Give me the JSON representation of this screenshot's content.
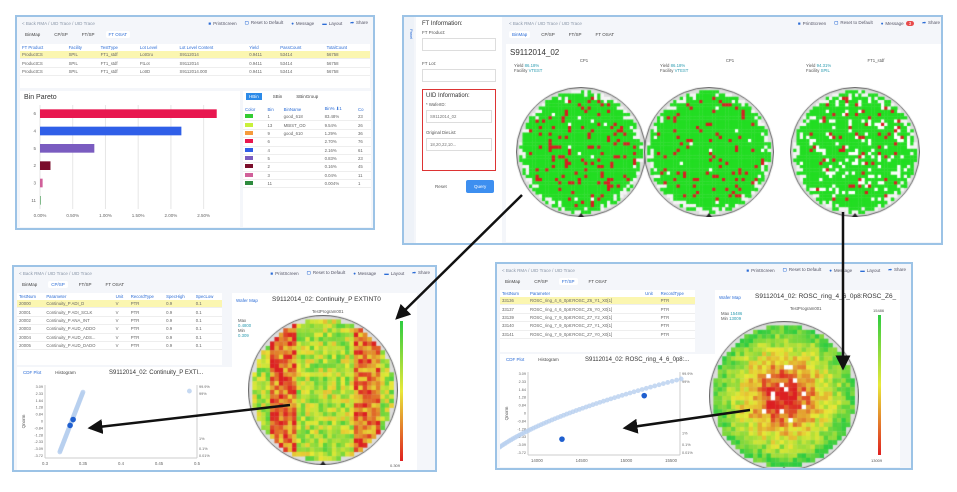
{
  "common": {
    "back": "< Back",
    "crumb": "RMA / UID Trace / UID Trace",
    "print": "PrintScreen",
    "reset": "Reset to Default",
    "message": "Message",
    "layout": "Layout",
    "share": "Share",
    "tabs": [
      "BinMap",
      "CP/SP",
      "FT/SP",
      "FT OSAT"
    ]
  },
  "panel_a": {
    "active_tab": 3,
    "table": {
      "headers": [
        "FT Product",
        "Facility",
        "TestType",
        "Lot Level",
        "Lot Level Content",
        "Yield",
        "PassCount",
        "TotalCount"
      ],
      "rows": [
        [
          "ProductCS",
          "SPIL",
          "FT1_stdf",
          "LotGru",
          "S9112014",
          "0.9411",
          "53414",
          "56758"
        ],
        [
          "ProductCS",
          "SPIL",
          "FT1_stdf",
          "FtLot",
          "S9112014",
          "0.9411",
          "53414",
          "56758"
        ],
        [
          "ProductCS",
          "SPIL",
          "FT1_stdf",
          "LotID",
          "S9112014.000",
          "0.9411",
          "53414",
          "56758"
        ]
      ]
    },
    "pareto": {
      "title": "Bin Pareto",
      "chart_data": {
        "type": "bar",
        "orientation": "horizontal",
        "categories": [
          "6",
          "4",
          "5",
          "2",
          "3",
          "11"
        ],
        "values": [
          2.7,
          2.16,
          0.83,
          0.16,
          0.04,
          0.004
        ],
        "colors": [
          "#e8174f",
          "#2f5fe8",
          "#7a5cc0",
          "#7a0d2b",
          "#d0609a",
          "#2e8b3e"
        ],
        "xticks": [
          "0.00%",
          "0.50%",
          "1.00%",
          "1.50%",
          "2.00%",
          "2.50%"
        ],
        "xlim": [
          0,
          2.75
        ]
      }
    },
    "bin_tabs": [
      "HBin",
      "SBin",
      "SBinGroup"
    ],
    "bin_table": {
      "headers": [
        "Color",
        "Bin",
        "BinName",
        "Bin% ⬇1",
        "Co"
      ],
      "rows": [
        [
          "#33cc33",
          "1",
          "good_618",
          "83.48%",
          "23"
        ],
        [
          "#c8f03c",
          "13",
          "MBIST_OD",
          "9.54%",
          "26"
        ],
        [
          "#f59a3c",
          "9",
          "good_610",
          "1.29%",
          "36"
        ],
        [
          "#e8174f",
          "6",
          "",
          "2.70%",
          "76"
        ],
        [
          "#2f5fe8",
          "4",
          "",
          "2.16%",
          "61"
        ],
        [
          "#7a5cc0",
          "5",
          "",
          "0.83%",
          "23"
        ],
        [
          "#7a0d2b",
          "2",
          "",
          "0.16%",
          "45"
        ],
        [
          "#d0609a",
          "3",
          "",
          "0.04%",
          "11"
        ],
        [
          "#2e8b3e",
          "11",
          "",
          "0.004%",
          "1"
        ]
      ]
    }
  },
  "panel_b": {
    "side_tab": "Panel",
    "ft_title": "FT Information:",
    "ft_product": "FT Product:",
    "ft_lot": "FT Lot:",
    "uid_title": "UID Information:",
    "wafer_label": "* WaferID:",
    "wafer_value": "S9112014_02",
    "die_label": "Original DieList:",
    "die_value": "18,20,22,10...",
    "reset_btn": "Reset",
    "query_btn": "Query",
    "message_count": "3",
    "active_tab": 0,
    "heading": "S9112014_02",
    "wafers": [
      {
        "title": "CP1",
        "yield": "86.18%",
        "facility": "VTEST"
      },
      {
        "title": "CP1",
        "yield": "86.18%",
        "facility": "VTEST"
      },
      {
        "title": "FT1_stdf",
        "yield": "94.31%",
        "facility": "SPIL"
      }
    ],
    "yield_label": "Yield",
    "facility_label": "Facility"
  },
  "panel_c": {
    "active_tab": 1,
    "table": {
      "headers": [
        "TestNum",
        "Parameter",
        "Unit",
        "RecordType",
        "SpecHigh",
        "SpecLow"
      ],
      "rows": [
        [
          "20000",
          "Continuity_P ADI_D",
          "V",
          "PTR",
          "0.9",
          "0.1"
        ],
        [
          "20001",
          "Continuity_P ADI_SCLK",
          "V",
          "PTR",
          "0.9",
          "0.1"
        ],
        [
          "20002",
          "Continuity_P ANA_INT",
          "V",
          "PTR",
          "0.9",
          "0.1"
        ],
        [
          "20003",
          "Continuity_P AUD_ADDO",
          "V",
          "PTR",
          "0.9",
          "0.1"
        ],
        [
          "20004",
          "Continuity_P AUD_ADS...",
          "V",
          "PTR",
          "0.9",
          "0.1"
        ],
        [
          "20005",
          "Continuity_P AUD_DADO",
          "V",
          "PTR",
          "0.9",
          "0.1"
        ]
      ]
    },
    "map_tab": "Wafer Map",
    "map_title": "S9112014_02: Continuity_P EXTINT0",
    "program": "TestProgram001",
    "max_label": "Max",
    "max": "0.4800",
    "min_label": "Min",
    "min": "0.309",
    "scale_min": "0.309",
    "cdf_tabs": [
      "CDF Plot",
      "Histogram"
    ],
    "cdf_title": "S9112014_02: Continuity_P EXTI...",
    "ylabel": "Qnorm",
    "chart_data": {
      "type": "scatter",
      "xticks": [
        "0.3",
        "0.35",
        "0.4",
        "0.45",
        "0.5"
      ],
      "xlim": [
        0.3,
        0.5
      ],
      "yticks": [
        "3.09",
        "2.33",
        "1.64",
        "1.28",
        "0.84",
        "0",
        "-0.84",
        "-1.28",
        "-2.33",
        "-3.09",
        "-3.72"
      ],
      "ylim": [
        -3.72,
        3.72
      ],
      "right_ticks": [
        "99.9%",
        "99%",
        "1%",
        "0.1%",
        "0.01%"
      ],
      "highlighted": [
        [
          0.337,
          0.2
        ],
        [
          0.333,
          -0.4
        ]
      ]
    }
  },
  "panel_d": {
    "active_tab": 2,
    "table": {
      "headers": [
        "TestNum",
        "Parameter",
        "Unit",
        "RecordType"
      ],
      "rows": [
        [
          "33136",
          "ROSC_ring_4_6_0p8:ROSC_Z6_Y1_X0[1]",
          "",
          "PTR"
        ],
        [
          "33137",
          "ROSC_ring_4_6_0p8:ROSC_Z6_Y0_X0[1]",
          "",
          "PTR"
        ],
        [
          "33139",
          "ROSC_ring_7_9_0p8:ROSC_Z7_Y2_X0[1]",
          "",
          "PTR"
        ],
        [
          "33140",
          "ROSC_ring_7_9_0p8:ROSC_Z7_Y1_X0[1]",
          "",
          "PTR"
        ],
        [
          "33141",
          "ROSC_ring_7_9_0p8:ROSC_Z7_Y0_X0[1]",
          "",
          "PTR"
        ]
      ]
    },
    "map_tab": "Wafer Map",
    "map_title": "S9112014_02: ROSC_ring_4_6_0p8:ROSC_Z6_",
    "program": "TestProgram001",
    "max_label": "Max",
    "max": "15486",
    "min_label": "Min",
    "min": "13009",
    "scale_max": "15486",
    "scale_min": "13009",
    "cdf_tabs": [
      "CDF Plot",
      "Histogram"
    ],
    "cdf_title": "S9112014_02: ROSC_ring_4_6_0p8:...",
    "ylabel": "Qnorm",
    "chart_data": {
      "type": "scatter",
      "xticks": [
        "14000",
        "14500",
        "15000",
        "15500"
      ],
      "xlim": [
        13900,
        15600
      ],
      "yticks": [
        "3.09",
        "2.33",
        "1.64",
        "1.28",
        "0.84",
        "0",
        "-0.84",
        "-1.28",
        "-2.33",
        "-3.09",
        "-3.72"
      ],
      "ylim": [
        -3.72,
        3.72
      ],
      "right_ticks": [
        "99.9%",
        "99%",
        "1%",
        "0.1%",
        "0.01%"
      ],
      "highlighted": [
        [
          14280,
          -2.3
        ],
        [
          15200,
          1.6
        ]
      ]
    }
  }
}
